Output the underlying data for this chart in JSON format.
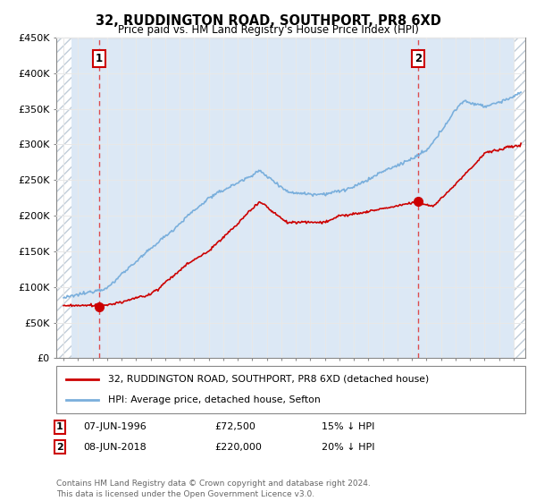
{
  "title": "32, RUDDINGTON ROAD, SOUTHPORT, PR8 6XD",
  "subtitle": "Price paid vs. HM Land Registry's House Price Index (HPI)",
  "ylim": [
    0,
    450000
  ],
  "xlim_start": 1993.5,
  "xlim_end": 2025.8,
  "hatch_left_end": 1994.55,
  "hatch_right_start": 2025.05,
  "sale1_x": 1996.44,
  "sale1_y": 72500,
  "sale1_label": "1",
  "sale2_x": 2018.44,
  "sale2_y": 220000,
  "sale2_label": "2",
  "sale1_date": "07-JUN-1996",
  "sale1_price": "£72,500",
  "sale1_hpi": "15% ↓ HPI",
  "sale2_date": "08-JUN-2018",
  "sale2_price": "£220,000",
  "sale2_hpi": "20% ↓ HPI",
  "legend_line1": "32, RUDDINGTON ROAD, SOUTHPORT, PR8 6XD (detached house)",
  "legend_line2": "HPI: Average price, detached house, Sefton",
  "footer": "Contains HM Land Registry data © Crown copyright and database right 2024.\nThis data is licensed under the Open Government Licence v3.0.",
  "sale_color": "#cc0000",
  "hpi_color": "#7aafdc",
  "plot_bg": "#dce8f5",
  "hatch_color": "#c0ccd8",
  "grid_color": "#aaaaaa",
  "dashed_line_color": "#dd4444"
}
